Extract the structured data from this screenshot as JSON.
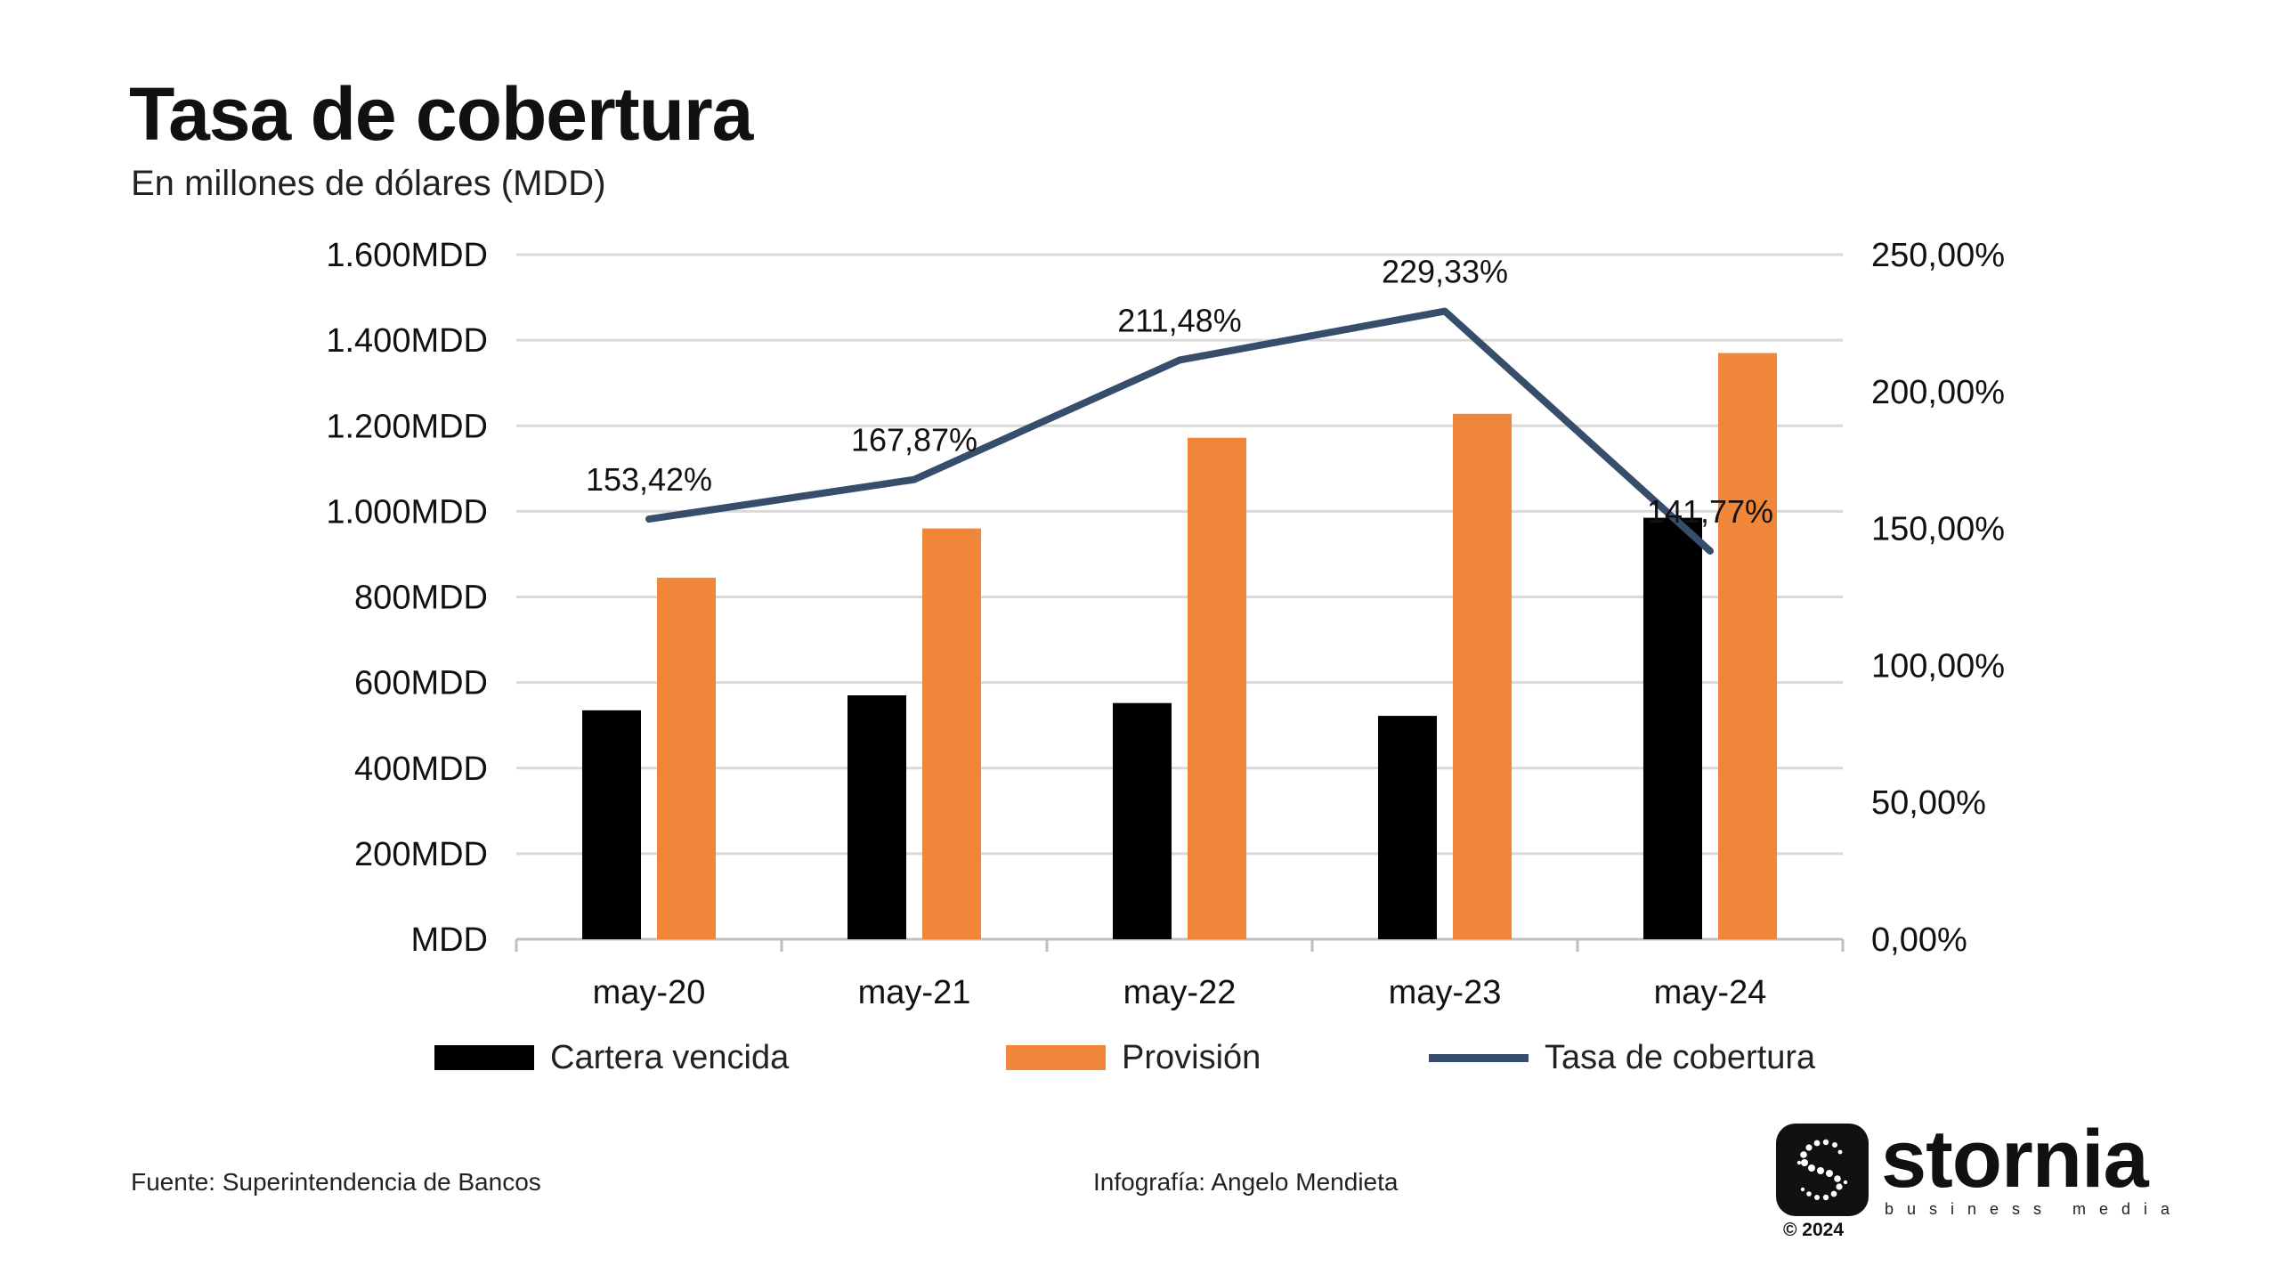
{
  "title": "Tasa de cobertura",
  "subtitle": "En millones de dólares (MDD)",
  "colors": {
    "cartera": "#000000",
    "provision": "#F0863A",
    "tasa": "#364E6C",
    "grid": "#D9D9D9",
    "axis": "#BFBFBF"
  },
  "chart_data": {
    "type": "bar",
    "categories": [
      "may-20",
      "may-21",
      "may-22",
      "may-23",
      "may-24"
    ],
    "series": [
      {
        "name": "Cartera vencida",
        "type": "bar",
        "axis": "left",
        "values": [
          535,
          570,
          552,
          522,
          985
        ]
      },
      {
        "name": "Provisión",
        "type": "bar",
        "axis": "left",
        "values": [
          845,
          960,
          1172,
          1228,
          1370
        ]
      },
      {
        "name": "Tasa de cobertura",
        "type": "line",
        "axis": "right",
        "values": [
          153.42,
          167.87,
          211.48,
          229.33,
          141.77
        ],
        "labels": [
          "153,42%",
          "167,87%",
          "211,48%",
          "229,33%",
          "141,77%"
        ]
      }
    ],
    "y_left": {
      "ylim": [
        0,
        1600
      ],
      "ticks": [
        0,
        200,
        400,
        600,
        800,
        1000,
        1200,
        1400,
        1600
      ],
      "tick_labels": [
        "MDD",
        "200MDD",
        "400MDD",
        "600MDD",
        "800MDD",
        "1.000MDD",
        "1.200MDD",
        "1.400MDD",
        "1.600MDD"
      ]
    },
    "y_right": {
      "ylim": [
        0,
        250
      ],
      "ticks": [
        0,
        50,
        100,
        150,
        200,
        250
      ],
      "tick_labels": [
        "0,00%",
        "50,00%",
        "100,00%",
        "150,00%",
        "200,00%",
        "250,00%"
      ]
    },
    "grid": true,
    "legend_position": "bottom"
  },
  "legend": {
    "items": [
      "Cartera vencida",
      "Provisión",
      "Tasa de cobertura"
    ]
  },
  "footer": {
    "source": "Fuente: Superintendencia de Bancos",
    "credit": "Infografía: Angelo Mendieta"
  },
  "logo": {
    "wordmark": "stornia",
    "tagline": "business media",
    "copyright": "© 2024"
  }
}
